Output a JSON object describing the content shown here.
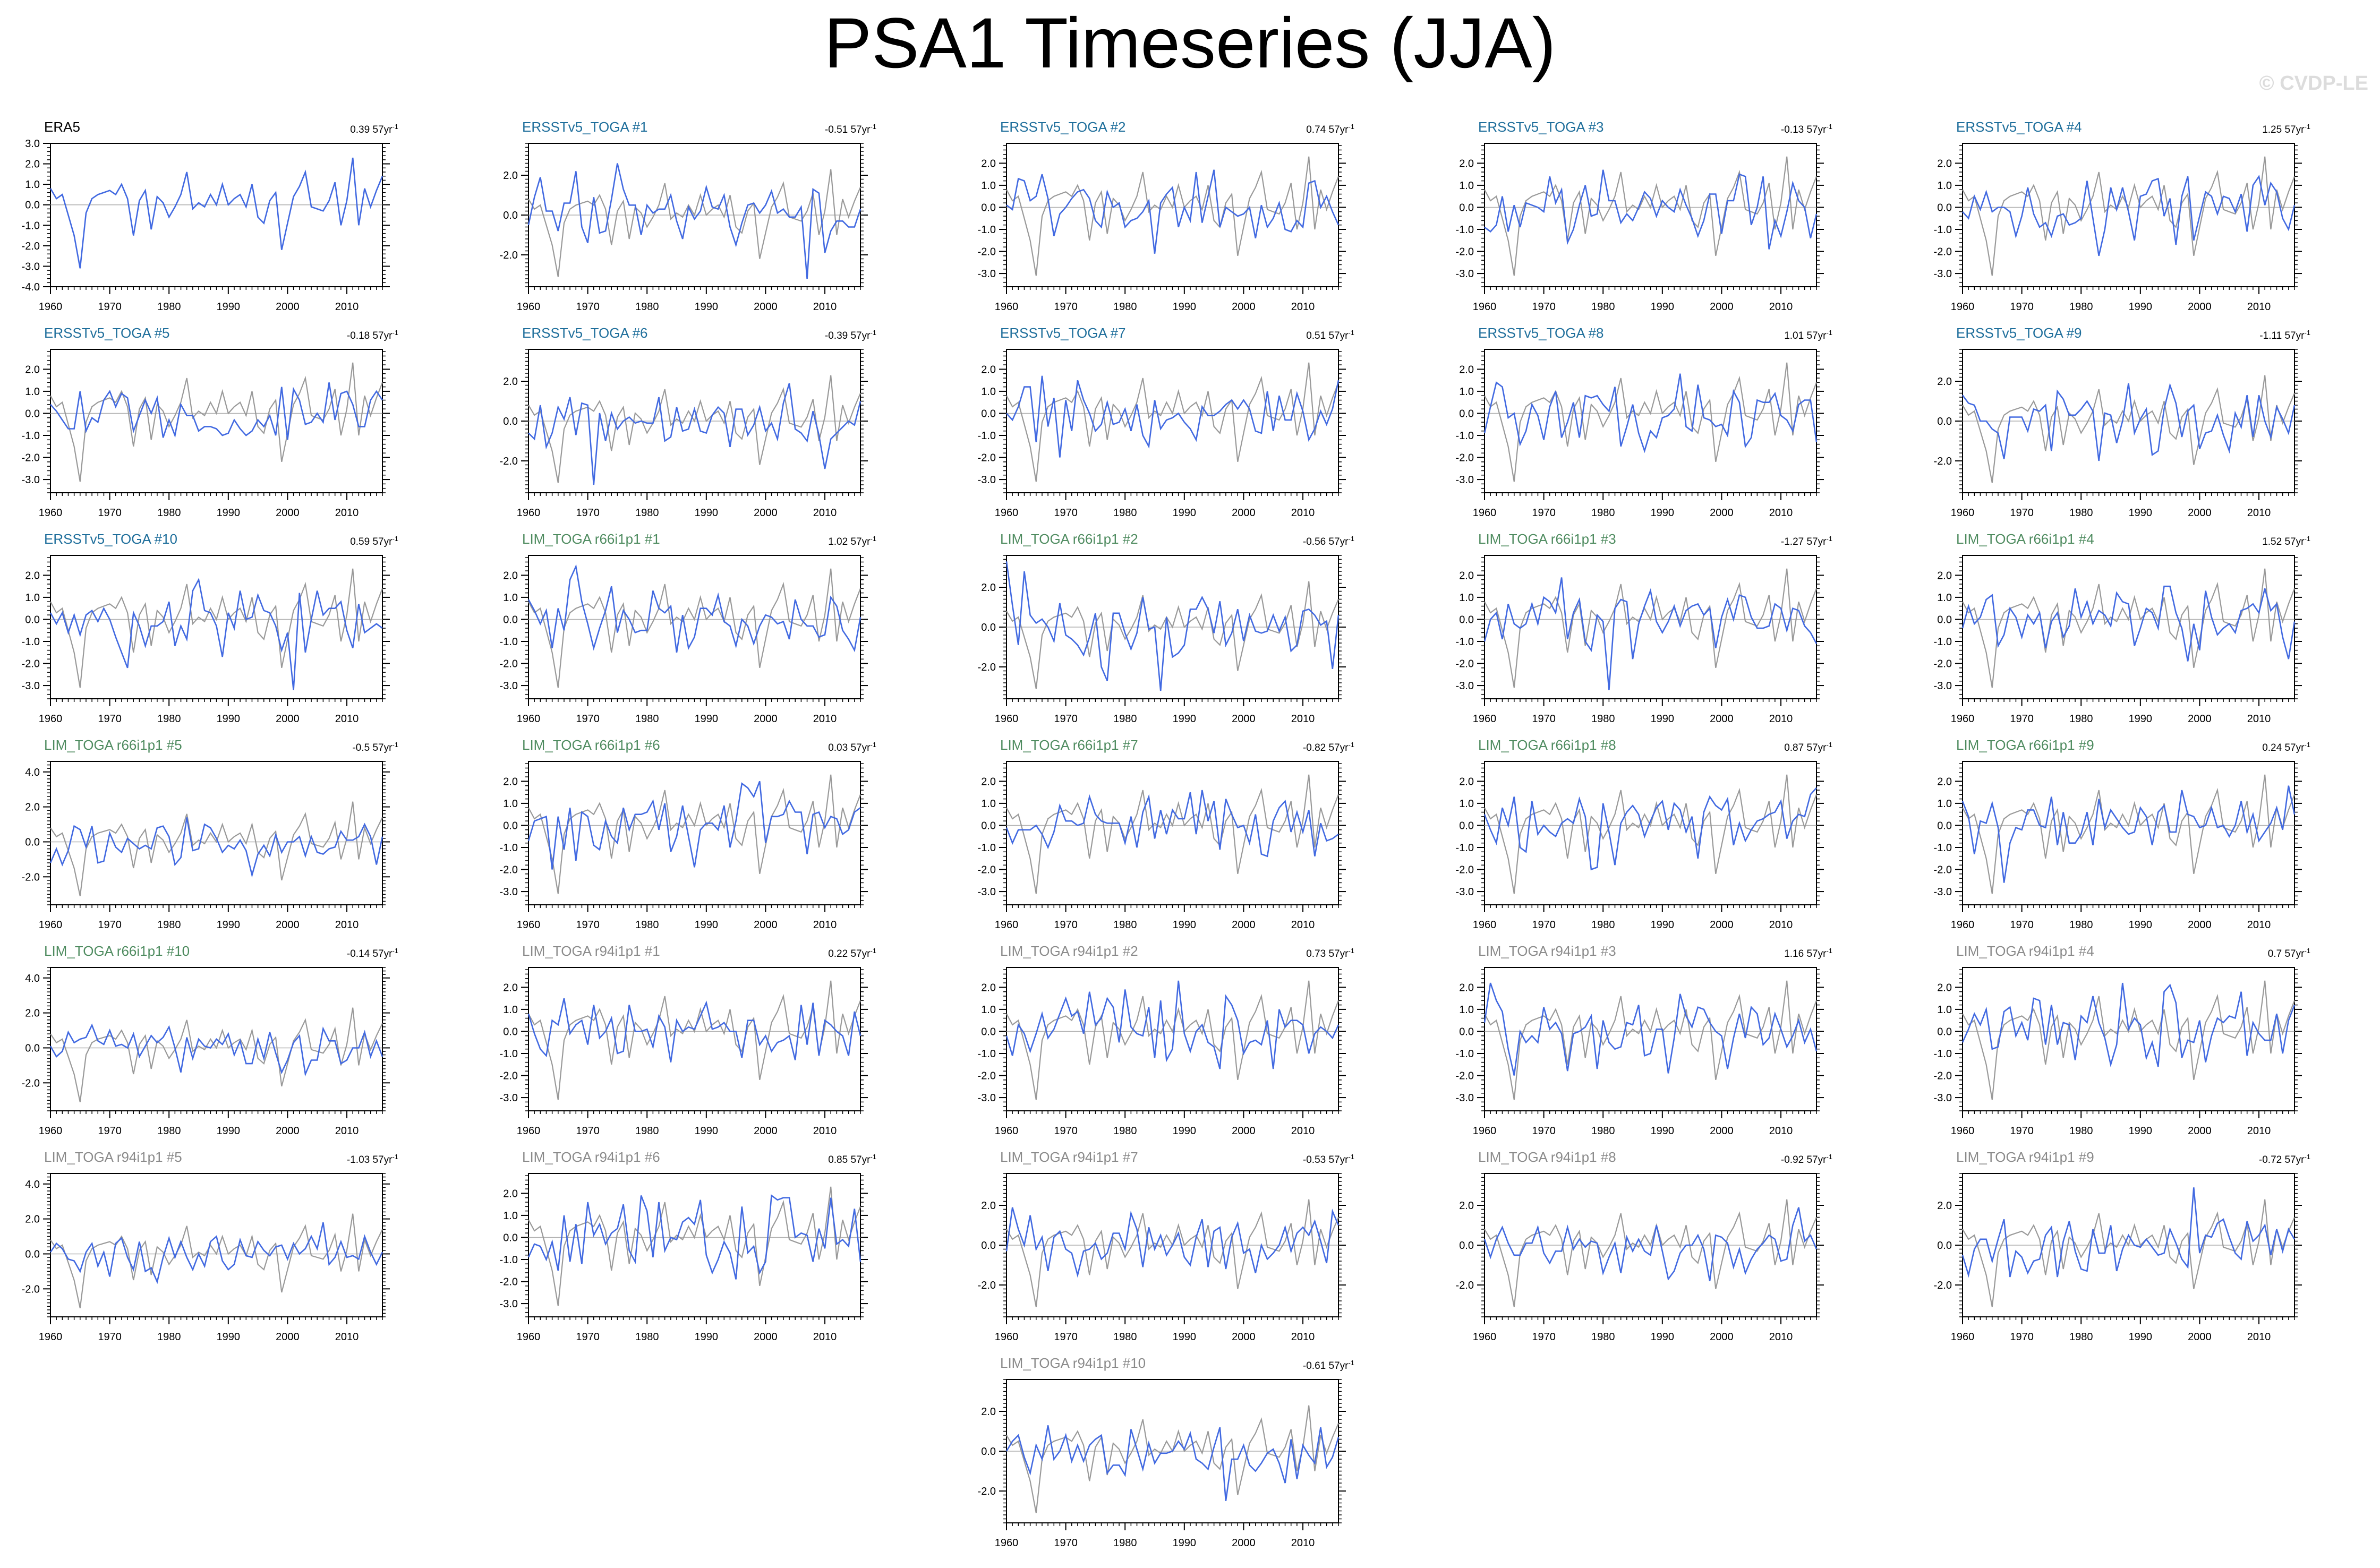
{
  "page": {
    "title": "PSA1 Timeseries (JJA)",
    "watermark": "© CVDP-LE"
  },
  "style": {
    "model_color": "#4169e1",
    "obs_color": "#999999",
    "zero_line_color": "#b0b0b0",
    "title_colors": {
      "obs": "#000000",
      "ersst": "#1e6e9b",
      "lim66": "#4e8b5f",
      "lim94": "#8a8a8a"
    }
  },
  "chart_data": {
    "type": "line",
    "x_start": 1960,
    "x_end": 2016,
    "x_ticks": [
      1960,
      1970,
      1980,
      1990,
      2000,
      2010
    ],
    "trend_unit": "57yr",
    "obs_values": [
      0.8,
      0.3,
      0.5,
      -0.5,
      -1.5,
      -3.1,
      -0.4,
      0.3,
      0.5,
      0.6,
      0.7,
      0.5,
      1.0,
      0.3,
      -1.5,
      0.2,
      0.7,
      -1.2,
      0.4,
      0.1,
      -0.6,
      -0.1,
      0.5,
      1.6,
      -0.2,
      0.1,
      -0.1,
      0.5,
      0.0,
      1.0,
      0.0,
      0.3,
      0.5,
      -0.1,
      1.0,
      -0.6,
      -0.9,
      0.2,
      0.6,
      -2.2,
      -0.9,
      0.4,
      0.9,
      1.6,
      -0.1,
      -0.2,
      -0.3,
      0.2,
      1.1,
      -1.0,
      0.2,
      2.3,
      -1.0,
      0.8,
      -0.1,
      0.7,
      1.4
    ],
    "panels": [
      {
        "title": "ERA5",
        "group": "obs",
        "trend": "0.39",
        "ylim": [
          -4.0,
          3.0
        ],
        "yticks": [
          3.0,
          2.0,
          1.0,
          0.0,
          -1.0,
          -2.0,
          -3.0,
          -4.0
        ],
        "series": [
          {
            "role": "obs",
            "values": [
              0.8,
              0.3,
              0.5,
              -0.5,
              -1.5,
              -3.1,
              -0.4,
              0.3,
              0.5,
              0.6,
              0.7,
              0.5,
              1.0,
              0.3,
              -1.5,
              0.2,
              0.7,
              -1.2,
              0.4,
              0.1,
              -0.6,
              -0.1,
              0.5,
              1.6,
              -0.2,
              0.1,
              -0.1,
              0.5,
              0.0,
              1.0,
              0.0,
              0.3,
              0.5,
              -0.1,
              1.0,
              -0.6,
              -0.9,
              0.2,
              0.6,
              -2.2,
              -0.9,
              0.4,
              0.9,
              1.6,
              -0.1,
              -0.2,
              -0.3,
              0.2,
              1.1,
              -1.0,
              0.2,
              2.3,
              -1.0,
              0.8,
              -0.1,
              0.7,
              1.4
            ]
          }
        ]
      },
      {
        "title": "ERSSTv5_TOGA #1",
        "group": "ersst",
        "trend": "-0.51",
        "ylim": [
          -3.6,
          3.6
        ],
        "yticks": [
          2.0,
          0.0,
          -2.0
        ],
        "series": [
          {
            "role": "model",
            "seed": 11,
            "amp": 1.0
          }
        ]
      },
      {
        "title": "ERSSTv5_TOGA #2",
        "group": "ersst",
        "trend": "0.74",
        "ylim": [
          -3.6,
          2.9
        ],
        "yticks": [
          2.0,
          1.0,
          0.0,
          -1.0,
          -2.0,
          -3.0
        ],
        "series": [
          {
            "role": "model",
            "seed": 12,
            "amp": 1.0
          }
        ]
      },
      {
        "title": "ERSSTv5_TOGA #3",
        "group": "ersst",
        "trend": "-0.13",
        "ylim": [
          -3.6,
          2.9
        ],
        "yticks": [
          2.0,
          1.0,
          0.0,
          -1.0,
          -2.0,
          -3.0
        ],
        "series": [
          {
            "role": "model",
            "seed": 13,
            "amp": 1.0
          }
        ]
      },
      {
        "title": "ERSSTv5_TOGA #4",
        "group": "ersst",
        "trend": "1.25",
        "ylim": [
          -3.6,
          2.9
        ],
        "yticks": [
          2.0,
          1.0,
          0.0,
          -1.0,
          -2.0,
          -3.0
        ],
        "series": [
          {
            "role": "model",
            "seed": 14,
            "amp": 1.0
          }
        ]
      },
      {
        "title": "ERSSTv5_TOGA #5",
        "group": "ersst",
        "trend": "-0.18",
        "ylim": [
          -3.6,
          2.9
        ],
        "yticks": [
          2.0,
          1.0,
          0.0,
          -1.0,
          -2.0,
          -3.0
        ],
        "series": [
          {
            "role": "model",
            "seed": 15,
            "amp": 1.0
          }
        ]
      },
      {
        "title": "ERSSTv5_TOGA #6",
        "group": "ersst",
        "trend": "-0.39",
        "ylim": [
          -3.6,
          3.6
        ],
        "yticks": [
          2.0,
          0.0,
          -2.0
        ],
        "series": [
          {
            "role": "model",
            "seed": 16,
            "amp": 1.0
          }
        ]
      },
      {
        "title": "ERSSTv5_TOGA #7",
        "group": "ersst",
        "trend": "0.51",
        "ylim": [
          -3.6,
          2.9
        ],
        "yticks": [
          2.0,
          1.0,
          0.0,
          -1.0,
          -2.0,
          -3.0
        ],
        "series": [
          {
            "role": "model",
            "seed": 17,
            "amp": 1.0
          }
        ]
      },
      {
        "title": "ERSSTv5_TOGA #8",
        "group": "ersst",
        "trend": "1.01",
        "ylim": [
          -3.6,
          2.9
        ],
        "yticks": [
          2.0,
          1.0,
          0.0,
          -1.0,
          -2.0,
          -3.0
        ],
        "series": [
          {
            "role": "model",
            "seed": 18,
            "amp": 1.0
          }
        ]
      },
      {
        "title": "ERSSTv5_TOGA #9",
        "group": "ersst",
        "trend": "-1.11",
        "ylim": [
          -3.6,
          3.6
        ],
        "yticks": [
          2.0,
          0.0,
          -2.0
        ],
        "series": [
          {
            "role": "model",
            "seed": 19,
            "amp": 1.0
          }
        ]
      },
      {
        "title": "ERSSTv5_TOGA #10",
        "group": "ersst",
        "trend": "0.59",
        "ylim": [
          -3.6,
          2.9
        ],
        "yticks": [
          2.0,
          1.0,
          0.0,
          -1.0,
          -2.0,
          -3.0
        ],
        "series": [
          {
            "role": "model",
            "seed": 20,
            "amp": 1.0
          }
        ]
      },
      {
        "title": "LIM_TOGA r66i1p1 #1",
        "group": "lim66",
        "trend": "1.02",
        "ylim": [
          -3.6,
          2.9
        ],
        "yticks": [
          2.0,
          1.0,
          0.0,
          -1.0,
          -2.0,
          -3.0
        ],
        "series": [
          {
            "role": "model",
            "seed": 21,
            "amp": 1.0
          }
        ]
      },
      {
        "title": "LIM_TOGA r66i1p1 #2",
        "group": "lim66",
        "trend": "-0.56",
        "ylim": [
          -3.6,
          3.6
        ],
        "yticks": [
          2.0,
          0.0,
          -2.0
        ],
        "series": [
          {
            "role": "model",
            "seed": 22,
            "amp": 1.1
          }
        ]
      },
      {
        "title": "LIM_TOGA r66i1p1 #3",
        "group": "lim66",
        "trend": "-1.27",
        "ylim": [
          -3.6,
          2.9
        ],
        "yticks": [
          2.0,
          1.0,
          0.0,
          -1.0,
          -2.0,
          -3.0
        ],
        "series": [
          {
            "role": "model",
            "seed": 23,
            "amp": 1.0
          }
        ]
      },
      {
        "title": "LIM_TOGA r66i1p1 #4",
        "group": "lim66",
        "trend": "1.52",
        "ylim": [
          -3.6,
          2.9
        ],
        "yticks": [
          2.0,
          1.0,
          0.0,
          -1.0,
          -2.0,
          -3.0
        ],
        "series": [
          {
            "role": "model",
            "seed": 24,
            "amp": 1.0
          }
        ]
      },
      {
        "title": "LIM_TOGA r66i1p1 #5",
        "group": "lim66",
        "trend": "-0.5",
        "ylim": [
          -3.6,
          4.6
        ],
        "yticks": [
          4.0,
          2.0,
          0.0,
          -2.0
        ],
        "series": [
          {
            "role": "model",
            "seed": 25,
            "amp": 0.9
          }
        ]
      },
      {
        "title": "LIM_TOGA r66i1p1 #6",
        "group": "lim66",
        "trend": "0.03",
        "ylim": [
          -3.6,
          2.9
        ],
        "yticks": [
          2.0,
          1.0,
          0.0,
          -1.0,
          -2.0,
          -3.0
        ],
        "series": [
          {
            "role": "model",
            "seed": 26,
            "amp": 1.0
          }
        ]
      },
      {
        "title": "LIM_TOGA r66i1p1 #7",
        "group": "lim66",
        "trend": "-0.82",
        "ylim": [
          -3.6,
          2.9
        ],
        "yticks": [
          2.0,
          1.0,
          0.0,
          -1.0,
          -2.0,
          -3.0
        ],
        "series": [
          {
            "role": "model",
            "seed": 27,
            "amp": 1.0
          }
        ]
      },
      {
        "title": "LIM_TOGA r66i1p1 #8",
        "group": "lim66",
        "trend": "0.87",
        "ylim": [
          -3.6,
          2.9
        ],
        "yticks": [
          2.0,
          1.0,
          0.0,
          -1.0,
          -2.0,
          -3.0
        ],
        "series": [
          {
            "role": "model",
            "seed": 28,
            "amp": 1.0
          }
        ]
      },
      {
        "title": "LIM_TOGA r66i1p1 #9",
        "group": "lim66",
        "trend": "0.24",
        "ylim": [
          -3.6,
          2.9
        ],
        "yticks": [
          2.0,
          1.0,
          0.0,
          -1.0,
          -2.0,
          -3.0
        ],
        "series": [
          {
            "role": "model",
            "seed": 29,
            "amp": 1.0
          }
        ]
      },
      {
        "title": "LIM_TOGA r66i1p1 #10",
        "group": "lim66",
        "trend": "-0.14",
        "ylim": [
          -3.6,
          4.6
        ],
        "yticks": [
          4.0,
          2.0,
          0.0,
          -2.0
        ],
        "series": [
          {
            "role": "model",
            "seed": 30,
            "amp": 0.8
          }
        ]
      },
      {
        "title": "LIM_TOGA r94i1p1 #1",
        "group": "lim94",
        "trend": "0.22",
        "ylim": [
          -3.6,
          2.9
        ],
        "yticks": [
          2.0,
          1.0,
          0.0,
          -1.0,
          -2.0,
          -3.0
        ],
        "series": [
          {
            "role": "model",
            "seed": 31,
            "amp": 1.0
          }
        ]
      },
      {
        "title": "LIM_TOGA r94i1p1 #2",
        "group": "lim94",
        "trend": "0.73",
        "ylim": [
          -3.6,
          2.9
        ],
        "yticks": [
          2.0,
          1.0,
          0.0,
          -1.0,
          -2.0,
          -3.0
        ],
        "series": [
          {
            "role": "model",
            "seed": 32,
            "amp": 1.0
          }
        ]
      },
      {
        "title": "LIM_TOGA r94i1p1 #3",
        "group": "lim94",
        "trend": "1.16",
        "ylim": [
          -3.6,
          2.9
        ],
        "yticks": [
          2.0,
          1.0,
          0.0,
          -1.0,
          -2.0,
          -3.0
        ],
        "series": [
          {
            "role": "model",
            "seed": 33,
            "amp": 1.0
          }
        ]
      },
      {
        "title": "LIM_TOGA r94i1p1 #4",
        "group": "lim94",
        "trend": "0.7",
        "ylim": [
          -3.6,
          2.9
        ],
        "yticks": [
          2.0,
          1.0,
          0.0,
          -1.0,
          -2.0,
          -3.0
        ],
        "series": [
          {
            "role": "model",
            "seed": 34,
            "amp": 1.0
          }
        ]
      },
      {
        "title": "LIM_TOGA r94i1p1 #5",
        "group": "lim94",
        "trend": "-1.03",
        "ylim": [
          -3.6,
          4.6
        ],
        "yticks": [
          4.0,
          2.0,
          0.0,
          -2.0
        ],
        "series": [
          {
            "role": "model",
            "seed": 35,
            "amp": 0.9
          }
        ]
      },
      {
        "title": "LIM_TOGA r94i1p1 #6",
        "group": "lim94",
        "trend": "0.85",
        "ylim": [
          -3.6,
          2.9
        ],
        "yticks": [
          2.0,
          1.0,
          0.0,
          -1.0,
          -2.0,
          -3.0
        ],
        "series": [
          {
            "role": "model",
            "seed": 36,
            "amp": 1.0
          }
        ]
      },
      {
        "title": "LIM_TOGA r94i1p1 #7",
        "group": "lim94",
        "trend": "-0.53",
        "ylim": [
          -3.6,
          3.6
        ],
        "yticks": [
          2.0,
          0.0,
          -2.0
        ],
        "series": [
          {
            "role": "model",
            "seed": 37,
            "amp": 1.0
          }
        ]
      },
      {
        "title": "LIM_TOGA r94i1p1 #8",
        "group": "lim94",
        "trend": "-0.92",
        "ylim": [
          -3.6,
          3.6
        ],
        "yticks": [
          2.0,
          0.0,
          -2.0
        ],
        "series": [
          {
            "role": "model",
            "seed": 38,
            "amp": 0.9
          }
        ]
      },
      {
        "title": "LIM_TOGA r94i1p1 #9",
        "group": "lim94",
        "trend": "-0.72",
        "ylim": [
          -3.6,
          3.6
        ],
        "yticks": [
          2.0,
          0.0,
          -2.0
        ],
        "series": [
          {
            "role": "model",
            "seed": 39,
            "amp": 0.9
          }
        ]
      },
      {
        "title": "LIM_TOGA r94i1p1 #10",
        "group": "lim94",
        "trend": "-0.61",
        "ylim": [
          -3.6,
          3.6
        ],
        "yticks": [
          2.0,
          0.0,
          -2.0
        ],
        "series": [
          {
            "role": "model",
            "seed": 40,
            "amp": 1.0
          }
        ]
      }
    ]
  }
}
